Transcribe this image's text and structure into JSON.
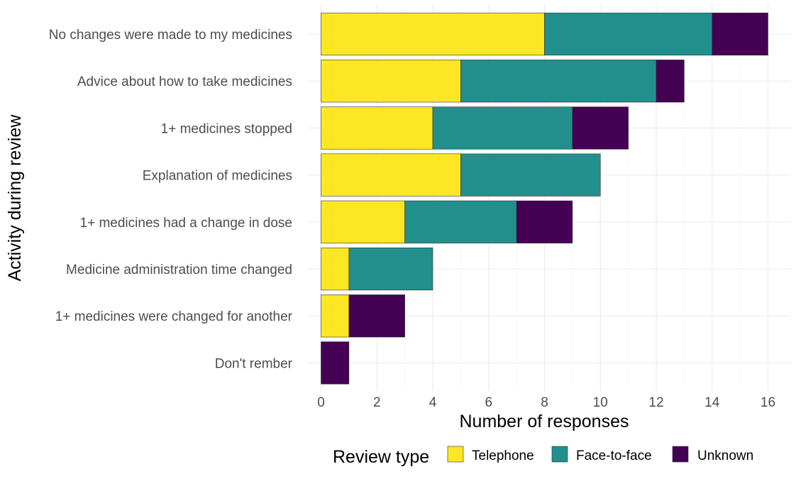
{
  "chart_data": {
    "type": "bar",
    "orientation": "horizontal",
    "stacked": true,
    "xlabel": "Number of responses",
    "ylabel": "Activity during review",
    "xlim": [
      0,
      16.8
    ],
    "x_ticks": [
      0,
      2,
      4,
      6,
      8,
      10,
      12,
      14,
      16
    ],
    "grid": true,
    "legend_position": "bottom",
    "legend_title": "Review type",
    "categories": [
      "No changes were made to my medicines",
      "Advice about how to take medicines",
      "1+ medicines stopped",
      "Explanation of medicines",
      "1+ medicines had a change in dose",
      "Medicine administration time changed",
      "1+ medicines were changed for another",
      "Don't rember"
    ],
    "series": [
      {
        "name": "Telephone",
        "color": "#fde725",
        "values": [
          8,
          5,
          4,
          5,
          3,
          1,
          1,
          0
        ]
      },
      {
        "name": "Face-to-face",
        "color": "#21908c",
        "values": [
          6,
          7,
          5,
          5,
          4,
          3,
          0,
          0
        ]
      },
      {
        "name": "Unknown",
        "color": "#440154",
        "values": [
          2,
          1,
          2,
          0,
          2,
          0,
          2,
          1
        ]
      }
    ]
  }
}
